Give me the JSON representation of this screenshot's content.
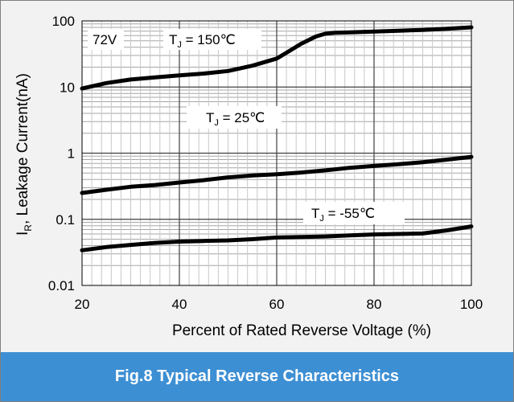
{
  "caption": "Fig.8 Typical Reverse Characteristics",
  "chart_data": {
    "type": "line",
    "title": "",
    "xlabel": "Percent of Rated Reverse Voltage (%)",
    "ylabel_main": "I",
    "ylabel_sub": "R",
    "ylabel_rest": ", Leakage  Current(nA)",
    "x_scale": "linear",
    "y_scale": "log",
    "xlim": [
      20,
      100
    ],
    "ylim": [
      0.01,
      100
    ],
    "grid": true,
    "xticks": [
      "20",
      "40",
      "60",
      "80",
      "100"
    ],
    "yticks": [
      "0.01",
      "0.1",
      "1",
      "10",
      "100"
    ],
    "legend": "none",
    "voltage_annotation": "72V",
    "series": [
      {
        "name_main": "T",
        "name_sub": "J",
        "name_rest": " = 150℃",
        "x": [
          20,
          25,
          30,
          35,
          40,
          45,
          50,
          55,
          60,
          62,
          65,
          68,
          70,
          72,
          75,
          80,
          85,
          90,
          95,
          100
        ],
        "y": [
          9.5,
          11.5,
          13,
          14,
          15,
          16,
          17.5,
          21,
          27,
          33,
          45,
          58,
          64,
          66,
          67,
          69,
          71,
          73,
          76,
          80
        ]
      },
      {
        "name_main": "T",
        "name_sub": "J",
        "name_rest": " = 25℃",
        "x": [
          20,
          25,
          30,
          35,
          40,
          45,
          50,
          55,
          60,
          65,
          70,
          75,
          80,
          85,
          90,
          95,
          100
        ],
        "y": [
          0.25,
          0.28,
          0.31,
          0.33,
          0.36,
          0.39,
          0.43,
          0.46,
          0.48,
          0.51,
          0.55,
          0.6,
          0.64,
          0.68,
          0.73,
          0.8,
          0.88
        ]
      },
      {
        "name_main": "T",
        "name_sub": "J",
        "name_rest": " = -55℃",
        "x": [
          20,
          25,
          30,
          35,
          40,
          45,
          50,
          55,
          60,
          65,
          70,
          75,
          80,
          85,
          90,
          95,
          100
        ],
        "y": [
          0.034,
          0.038,
          0.041,
          0.044,
          0.046,
          0.047,
          0.048,
          0.05,
          0.053,
          0.054,
          0.055,
          0.057,
          0.059,
          0.06,
          0.061,
          0.068,
          0.078
        ]
      }
    ]
  }
}
